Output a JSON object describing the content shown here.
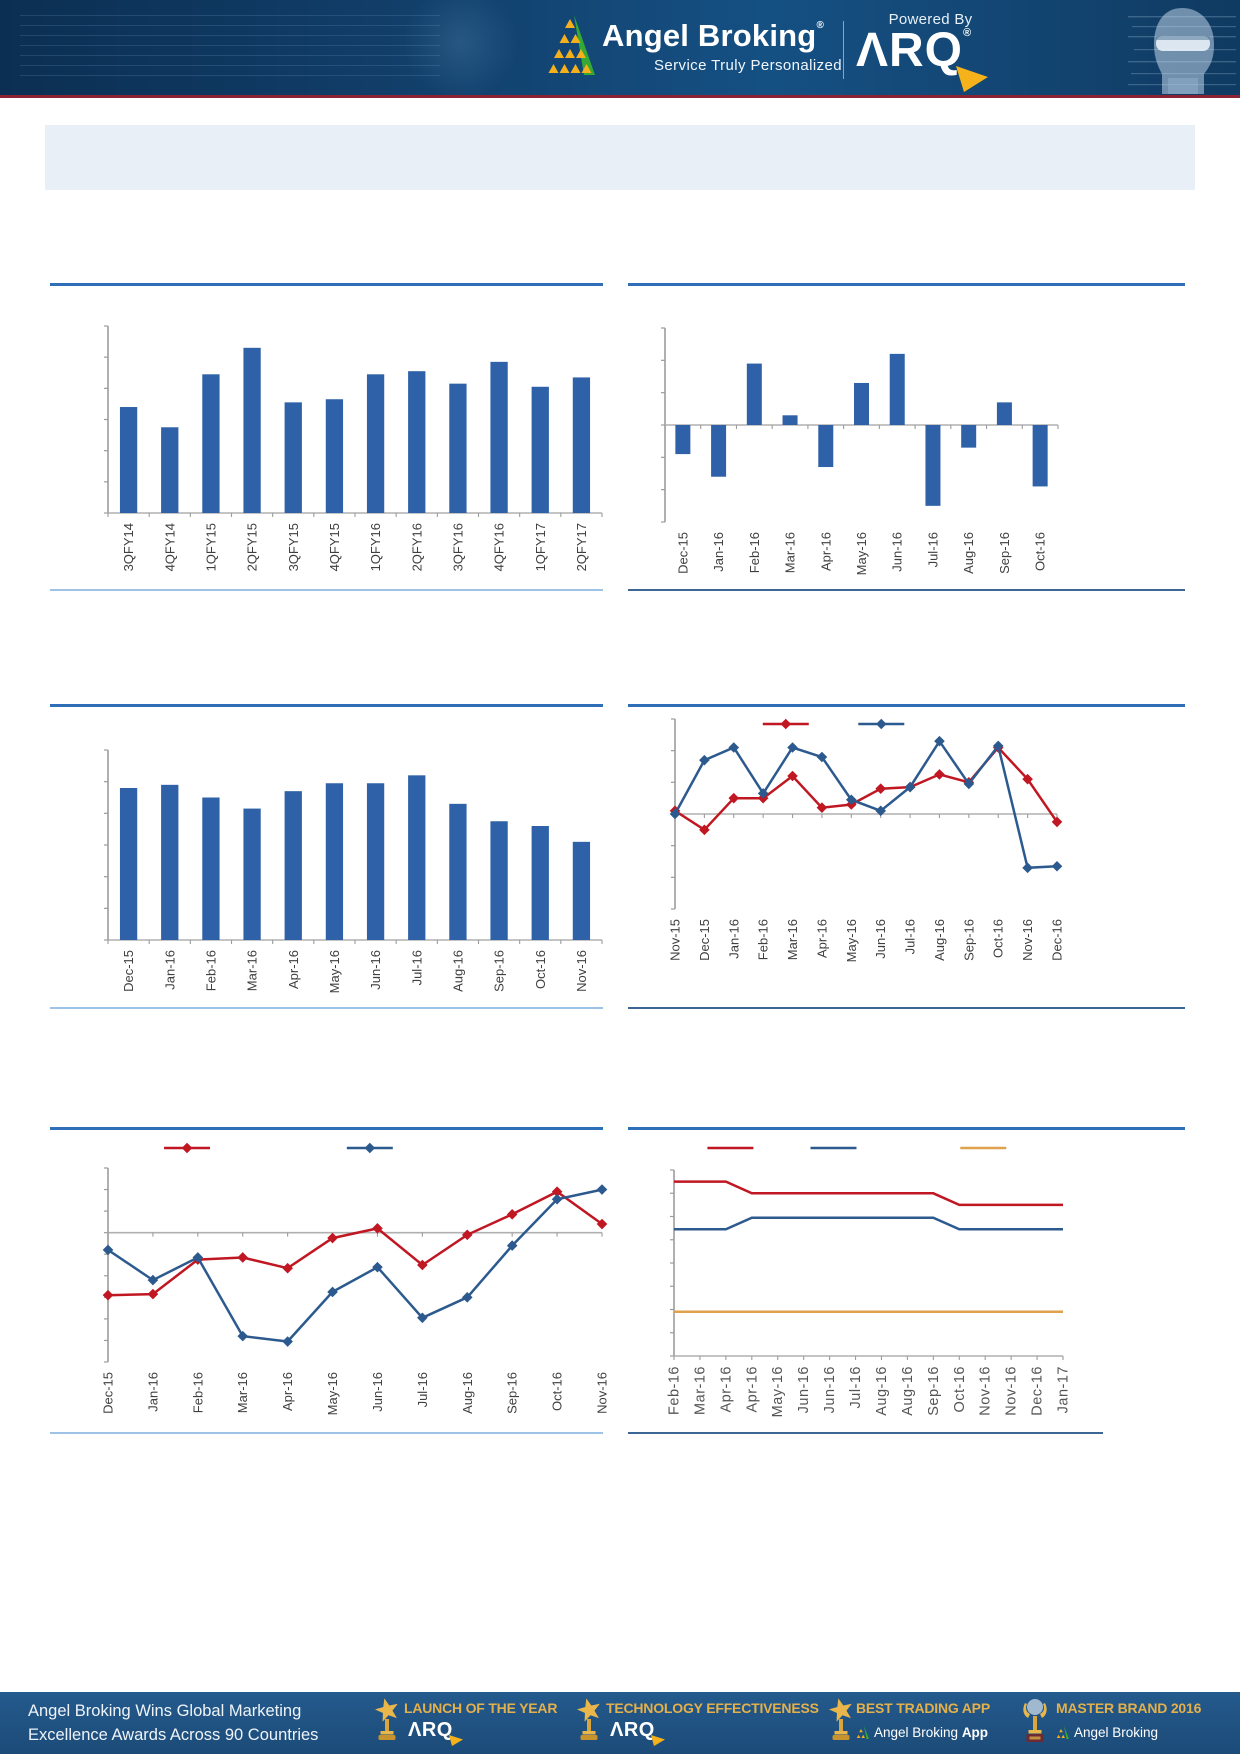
{
  "header": {
    "brand": "Angel Broking",
    "brand_reg": "®",
    "tagline": "Service Truly Personalized",
    "powered_by": "Powered By",
    "arq": "ΛRQ",
    "arq_reg": "®"
  },
  "colors": {
    "bar_blue": "#2e61a8",
    "line_blue": "#2d5a8e",
    "line_red": "#c01722",
    "line_orange": "#dfa14c",
    "rule_blue": "#2e6fb7",
    "header_navy": "#113d68",
    "footer_navy": "#1c4b78",
    "award_gold": "#e3b04b"
  },
  "chart_data": [
    {
      "type": "bar",
      "title": "",
      "color": "#2e61a8",
      "categories": [
        "3QFY14",
        "4QFY14",
        "1QFY15",
        "2QFY15",
        "3QFY15",
        "4QFY15",
        "1QFY16",
        "2QFY16",
        "3QFY16",
        "4QFY16",
        "1QFY17",
        "2QFY17"
      ],
      "values": [
        3.4,
        2.75,
        4.45,
        5.3,
        3.55,
        3.65,
        4.45,
        4.55,
        4.15,
        4.85,
        4.05,
        4.35
      ],
      "ylim": [
        0,
        6
      ],
      "xlabel": "",
      "ylabel": ""
    },
    {
      "type": "bar",
      "title": "",
      "color": "#2e61a8",
      "categories": [
        "Dec-15",
        "Jan-16",
        "Feb-16",
        "Mar-16",
        "Apr-16",
        "May-16",
        "Jun-16",
        "Jul-16",
        "Aug-16",
        "Sep-16",
        "Oct-16"
      ],
      "values": [
        -0.9,
        -1.6,
        1.9,
        0.3,
        -1.3,
        1.3,
        2.2,
        -2.5,
        -0.7,
        0.7,
        -1.9
      ],
      "ylim": [
        -3,
        3
      ],
      "xlabel": "",
      "ylabel": ""
    },
    {
      "type": "bar",
      "title": "",
      "color": "#2e61a8",
      "categories": [
        "Dec-15",
        "Jan-16",
        "Feb-16",
        "Mar-16",
        "Apr-16",
        "May-16",
        "Jun-16",
        "Jul-16",
        "Aug-16",
        "Sep-16",
        "Oct-16",
        "Nov-16"
      ],
      "values": [
        4.8,
        4.9,
        4.5,
        4.15,
        4.7,
        4.95,
        4.95,
        5.2,
        4.3,
        3.75,
        3.6,
        3.1
      ],
      "ylim": [
        0,
        6
      ],
      "xlabel": "",
      "ylabel": ""
    },
    {
      "type": "line",
      "title": "",
      "markers": true,
      "categories": [
        "Nov-15",
        "Dec-15",
        "Jan-16",
        "Feb-16",
        "Mar-16",
        "Apr-16",
        "May-16",
        "Jun-16",
        "Jul-16",
        "Aug-16",
        "Sep-16",
        "Oct-16",
        "Nov-16",
        "Dec-16"
      ],
      "series": [
        {
          "name": "",
          "color": "#c01722",
          "values": [
            0.1,
            -0.5,
            0.5,
            0.5,
            1.2,
            0.2,
            0.3,
            0.8,
            0.85,
            1.25,
            1.0,
            2.1,
            1.1,
            -0.25
          ]
        },
        {
          "name": "",
          "color": "#2d5a8e",
          "values": [
            0.0,
            1.7,
            2.1,
            0.65,
            2.1,
            1.8,
            0.45,
            0.1,
            0.85,
            2.3,
            0.95,
            2.15,
            -1.7,
            -1.65
          ]
        }
      ],
      "ylim": [
        -3,
        3
      ],
      "legend": [
        {
          "color": "#c01722",
          "marker": "diamond",
          "x_pct": 29
        },
        {
          "color": "#2d5a8e",
          "marker": "diamond",
          "x_pct": 54
        }
      ],
      "legend_position": "top"
    },
    {
      "type": "line",
      "title": "",
      "markers": true,
      "categories": [
        "Dec-15",
        "Jan-16",
        "Feb-16",
        "Mar-16",
        "Apr-16",
        "May-16",
        "Jun-16",
        "Jul-16",
        "Aug-16",
        "Sep-16",
        "Oct-16",
        "Nov-16"
      ],
      "series": [
        {
          "name": "",
          "color": "#c01722",
          "values": [
            -2.9,
            -2.85,
            -1.25,
            -1.15,
            -1.65,
            -0.25,
            0.2,
            -1.5,
            -0.1,
            0.85,
            1.9,
            0.4
          ]
        },
        {
          "name": "",
          "color": "#2d5a8e",
          "values": [
            -0.8,
            -2.2,
            -1.15,
            -4.8,
            -5.05,
            -2.75,
            -1.6,
            -3.95,
            -3.0,
            -0.6,
            1.55,
            2.0
          ]
        }
      ],
      "ylim": [
        -6,
        3
      ],
      "legend": [
        {
          "color": "#c01722",
          "marker": "diamond",
          "x_pct": 16
        },
        {
          "color": "#2d5a8e",
          "marker": "diamond",
          "x_pct": 53
        }
      ],
      "legend_position": "top"
    },
    {
      "type": "line",
      "title": "",
      "markers": false,
      "categories": [
        "Feb-16",
        "Mar-16",
        "Apr-16",
        "Apr-16",
        "May-16",
        "Jun-16",
        "Jun-16",
        "Jul-16",
        "Aug-16",
        "Aug-16",
        "Sep-16",
        "Oct-16",
        "Nov-16",
        "Nov-16",
        "Dec-16",
        "Jan-17"
      ],
      "series": [
        {
          "name": "",
          "color": "#c01722",
          "values": [
            7.5,
            7.5,
            7.5,
            7.0,
            7.0,
            7.0,
            7.0,
            7.0,
            7.0,
            7.0,
            7.0,
            6.5,
            6.5,
            6.5,
            6.5,
            6.5
          ]
        },
        {
          "name": "",
          "color": "#2d5a8e",
          "values": [
            5.45,
            5.45,
            5.45,
            5.95,
            5.95,
            5.95,
            5.95,
            5.95,
            5.95,
            5.95,
            5.95,
            5.45,
            5.45,
            5.45,
            5.45,
            5.45
          ]
        },
        {
          "name": "",
          "color": "#dfa14c",
          "values": [
            1.9,
            1.9,
            1.9,
            1.9,
            1.9,
            1.9,
            1.9,
            1.9,
            1.9,
            1.9,
            1.9,
            1.9,
            1.9,
            1.9,
            1.9,
            1.9
          ]
        }
      ],
      "ylim": [
        0,
        8
      ],
      "legend": [
        {
          "color": "#c01722",
          "marker": "line",
          "x_pct": 14.5
        },
        {
          "color": "#2d5a8e",
          "marker": "line",
          "x_pct": 41
        },
        {
          "color": "#dfa14c",
          "marker": "line",
          "x_pct": 79.5
        }
      ],
      "legend_position": "top",
      "label_style": "g"
    }
  ],
  "footer": {
    "line1": "Angel Broking Wins Global Marketing",
    "line2": "Excellence Awards Across 90 Countries",
    "awards": [
      {
        "title": "LAUNCH OF THE YEAR",
        "sub": "ΛRQ"
      },
      {
        "title": "TECHNOLOGY EFFECTIVENESS",
        "sub": "ΛRQ"
      },
      {
        "title": "BEST TRADING APP",
        "sub": "Angel Broking ",
        "sub_bold": "App"
      },
      {
        "title": "MASTER BRAND 2016",
        "sub": "Angel Broking"
      }
    ]
  }
}
